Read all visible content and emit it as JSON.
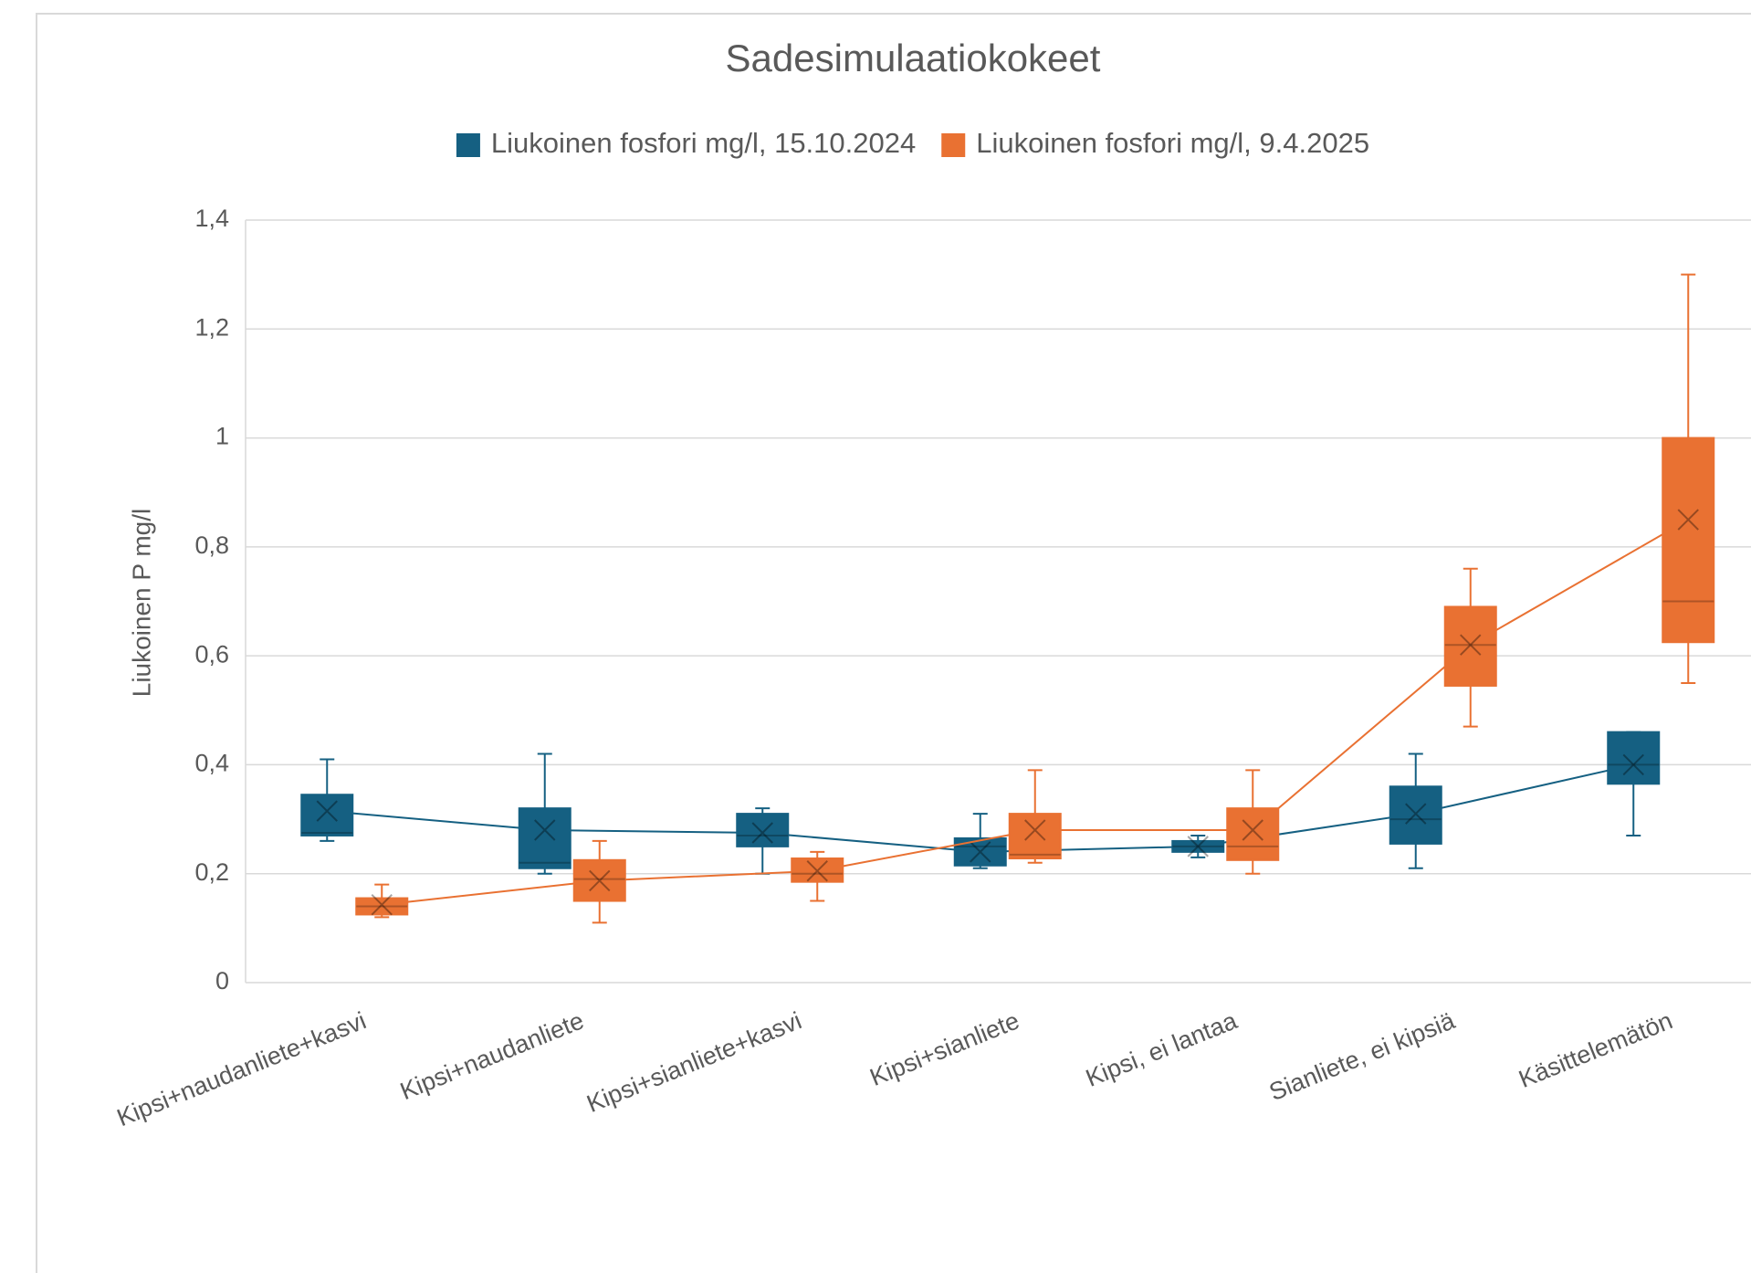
{
  "chart_data": {
    "type": "box",
    "title": "Sadesimulaatiokokeet",
    "y_label": "Liukoinen P mg/l",
    "categories": [
      "Kipsi+naudanliete+kasvi",
      "Kipsi+naudanliete",
      "Kipsi+sianliete+kasvi",
      "Kipsi+sianliete",
      "Kipsi, ei lantaa",
      "Sianliete, ei kipsiä",
      "Käsittelemätön"
    ],
    "series": [
      {
        "name": "Liukoinen fosfori mg/l, 15.10.2024",
        "color": "#156082",
        "min": [
          0.26,
          0.2,
          0.2,
          0.21,
          0.23,
          0.21,
          0.27
        ],
        "q1": [
          0.27,
          0.21,
          0.25,
          0.215,
          0.24,
          0.255,
          0.365
        ],
        "median": [
          0.275,
          0.22,
          0.27,
          0.25,
          0.25,
          0.3,
          0.4
        ],
        "q3": [
          0.345,
          0.32,
          0.31,
          0.265,
          0.26,
          0.36,
          0.46
        ],
        "max": [
          0.41,
          0.42,
          0.32,
          0.31,
          0.27,
          0.42,
          0.46
        ],
        "mean": [
          0.315,
          0.28,
          0.275,
          0.24,
          0.25,
          0.31,
          0.4
        ]
      },
      {
        "name": "Liukoinen fosfori mg/l, 9.4.2025",
        "color": "#e97132",
        "min": [
          0.12,
          0.11,
          0.15,
          0.22,
          0.2,
          0.47,
          0.55
        ],
        "q1": [
          0.125,
          0.15,
          0.185,
          0.228,
          0.225,
          0.545,
          0.625
        ],
        "median": [
          0.14,
          0.19,
          0.2,
          0.235,
          0.25,
          0.62,
          0.7
        ],
        "q3": [
          0.155,
          0.225,
          0.228,
          0.31,
          0.32,
          0.69,
          1.0
        ],
        "max": [
          0.18,
          0.26,
          0.24,
          0.39,
          0.39,
          0.76,
          1.3
        ],
        "mean": [
          0.143,
          0.187,
          0.205,
          0.28,
          0.28,
          0.62,
          0.85
        ]
      }
    ],
    "ylim": [
      0,
      1.4
    ],
    "yticks": [
      0,
      {
        "value": 0.2,
        "label": "0,2"
      },
      {
        "value": 0.4,
        "label": "0,4"
      },
      {
        "value": 0.6,
        "label": "0,6"
      },
      {
        "value": 0.8,
        "label": "0,8"
      },
      1,
      {
        "value": 1.2,
        "label": "1,2"
      },
      {
        "value": 1.4,
        "label": "1,4"
      }
    ],
    "grid": true,
    "legend": "top"
  }
}
